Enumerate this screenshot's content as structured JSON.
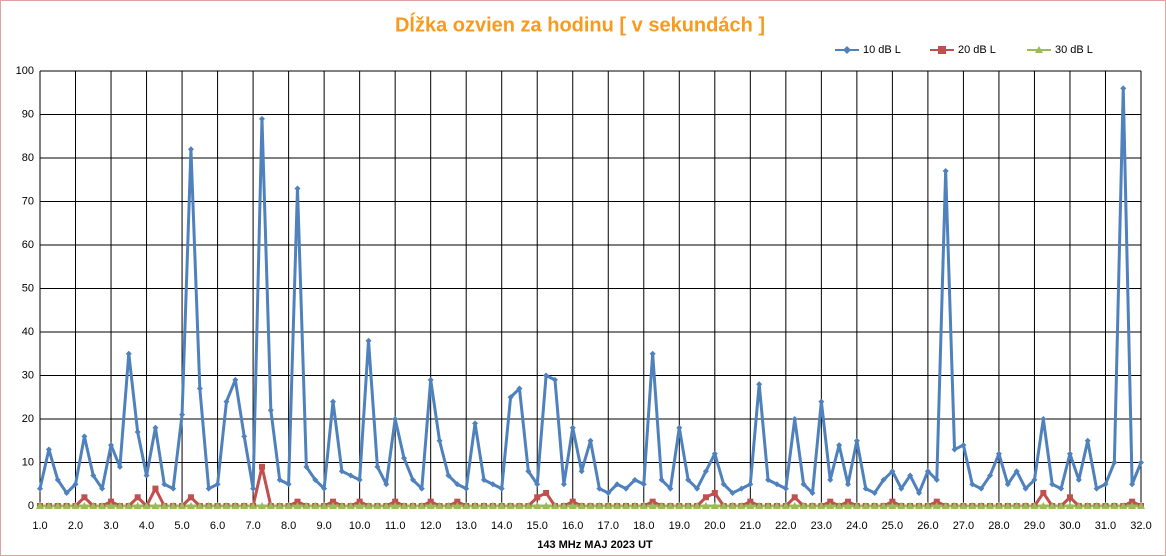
{
  "chart_data": {
    "type": "line",
    "title": "Dĺžka ozvien za hodinu [ v sekundách ]",
    "x_label": "143 MHz MAJ  2023  UT",
    "x": [
      1,
      1.25,
      1.5,
      1.75,
      2,
      2.25,
      2.5,
      2.75,
      3,
      3.25,
      3.5,
      3.75,
      4,
      4.25,
      4.5,
      4.75,
      5,
      5.25,
      5.5,
      5.75,
      6,
      6.25,
      6.5,
      6.75,
      7,
      7.25,
      7.5,
      7.75,
      8,
      8.25,
      8.5,
      8.75,
      9,
      9.25,
      9.5,
      9.75,
      10,
      10.25,
      10.5,
      10.75,
      11,
      11.25,
      11.5,
      11.75,
      12,
      12.25,
      12.5,
      12.75,
      13,
      13.25,
      13.5,
      13.75,
      14,
      14.25,
      14.5,
      14.75,
      15,
      15.25,
      15.5,
      15.75,
      16,
      16.25,
      16.5,
      16.75,
      17,
      17.25,
      17.5,
      17.75,
      18,
      18.25,
      18.5,
      18.75,
      19,
      19.25,
      19.5,
      19.75,
      20,
      20.25,
      20.5,
      20.75,
      21,
      21.25,
      21.5,
      21.75,
      22,
      22.25,
      22.5,
      22.75,
      23,
      23.25,
      23.5,
      23.75,
      24,
      24.25,
      24.5,
      24.75,
      25,
      25.25,
      25.5,
      25.75,
      26,
      26.25,
      26.5,
      26.75,
      27,
      27.25,
      27.5,
      27.75,
      28,
      28.25,
      28.5,
      28.75,
      29,
      29.25,
      29.5,
      29.75,
      30,
      30.25,
      30.5,
      30.75,
      31,
      31.25,
      31.5,
      31.75,
      32
    ],
    "series": [
      {
        "name": "10 dB L",
        "color": "#4f81bd",
        "marker": "diamond",
        "values": [
          4,
          13,
          6,
          3,
          5,
          16,
          7,
          4,
          14,
          9,
          35,
          17,
          7,
          18,
          5,
          4,
          21,
          82,
          27,
          4,
          5,
          24,
          29,
          16,
          4,
          89,
          22,
          6,
          5,
          73,
          9,
          6,
          4,
          24,
          8,
          7,
          6,
          38,
          9,
          5,
          20,
          11,
          6,
          4,
          29,
          15,
          7,
          5,
          4,
          19,
          6,
          5,
          4,
          25,
          27,
          8,
          5,
          30,
          29,
          5,
          18,
          8,
          15,
          4,
          3,
          5,
          4,
          6,
          5,
          35,
          6,
          4,
          18,
          6,
          4,
          8,
          12,
          5,
          3,
          4,
          5,
          28,
          6,
          5,
          4,
          20,
          5,
          3,
          24,
          6,
          14,
          5,
          15,
          4,
          3,
          6,
          8,
          4,
          7,
          3,
          8,
          6,
          77,
          13,
          14,
          5,
          4,
          7,
          12,
          5,
          8,
          4,
          6,
          20,
          5,
          4,
          12,
          6,
          15,
          4,
          5,
          10,
          96,
          5,
          10
        ]
      },
      {
        "name": "20 dB L",
        "color": "#c0504d",
        "marker": "square",
        "values": [
          0,
          0,
          0,
          0,
          0,
          2,
          0,
          0,
          1,
          0,
          0,
          2,
          0,
          4,
          0,
          0,
          0,
          2,
          0,
          0,
          0,
          0,
          0,
          0,
          0,
          9,
          0,
          0,
          0,
          1,
          0,
          0,
          0,
          1,
          0,
          0,
          1,
          0,
          0,
          0,
          1,
          0,
          0,
          0,
          1,
          0,
          0,
          1,
          0,
          0,
          0,
          0,
          0,
          0,
          0,
          0,
          2,
          3,
          0,
          0,
          1,
          0,
          0,
          0,
          0,
          0,
          0,
          0,
          0,
          1,
          0,
          0,
          0,
          0,
          0,
          2,
          3,
          0,
          0,
          0,
          1,
          0,
          0,
          0,
          0,
          2,
          0,
          0,
          0,
          1,
          0,
          1,
          0,
          0,
          0,
          0,
          1,
          0,
          0,
          0,
          0,
          1,
          0,
          0,
          0,
          0,
          0,
          0,
          0,
          0,
          0,
          0,
          0,
          3,
          0,
          0,
          2,
          0,
          0,
          0,
          0,
          0,
          0,
          1,
          0
        ]
      },
      {
        "name": "30 dB L",
        "color": "#9bbb59",
        "marker": "triangle",
        "values": [
          0,
          0,
          0,
          0,
          0,
          0,
          0,
          0,
          0,
          0,
          0,
          0,
          0,
          0,
          0,
          0,
          0,
          0,
          0,
          0,
          0,
          0,
          0,
          0,
          0,
          0,
          0,
          0,
          0,
          0,
          0,
          0,
          0,
          0,
          0,
          0,
          0,
          0,
          0,
          0,
          0,
          0,
          0,
          0,
          0,
          0,
          0,
          0,
          0,
          0,
          0,
          0,
          0,
          0,
          0,
          0,
          0,
          0,
          0,
          0,
          0,
          0,
          0,
          0,
          0,
          0,
          0,
          0,
          0,
          0,
          0,
          0,
          0,
          0,
          0,
          0,
          0,
          0,
          0,
          0,
          0,
          0,
          0,
          0,
          0,
          0,
          0,
          0,
          0,
          0,
          0,
          0,
          0,
          0,
          0,
          0,
          0,
          0,
          0,
          0,
          0,
          0,
          0,
          0,
          0,
          0,
          0,
          0,
          0,
          0,
          0,
          0,
          0,
          0,
          0,
          0,
          0,
          0,
          0,
          0,
          0,
          0,
          0,
          0,
          0
        ]
      }
    ],
    "xlim": [
      1,
      32
    ],
    "xticks": [
      {
        "value": 1,
        "label": "1.0"
      },
      {
        "value": 2,
        "label": "2.0"
      },
      {
        "value": 3,
        "label": "3.0"
      },
      {
        "value": 4,
        "label": "4.0"
      },
      {
        "value": 5,
        "label": "5.0"
      },
      {
        "value": 6,
        "label": "6.0"
      },
      {
        "value": 7,
        "label": "7.0"
      },
      {
        "value": 8,
        "label": "8.0"
      },
      {
        "value": 9,
        "label": "9.0"
      },
      {
        "value": 10,
        "label": "10.0"
      },
      {
        "value": 11,
        "label": "11.0"
      },
      {
        "value": 12,
        "label": "12.0"
      },
      {
        "value": 13,
        "label": "13.0"
      },
      {
        "value": 14,
        "label": "14.0"
      },
      {
        "value": 15,
        "label": "15.0"
      },
      {
        "value": 16,
        "label": "16.0"
      },
      {
        "value": 17,
        "label": "17.0"
      },
      {
        "value": 18,
        "label": "18.0"
      },
      {
        "value": 19,
        "label": "19.0"
      },
      {
        "value": 20,
        "label": "20.0"
      },
      {
        "value": 21,
        "label": "21.0"
      },
      {
        "value": 22,
        "label": "22.0"
      },
      {
        "value": 23,
        "label": "23.0"
      },
      {
        "value": 24,
        "label": "24.0"
      },
      {
        "value": 25,
        "label": "25.0"
      },
      {
        "value": 26,
        "label": "26.0"
      },
      {
        "value": 27,
        "label": "27.0"
      },
      {
        "value": 28,
        "label": "28.0"
      },
      {
        "value": 29,
        "label": "29.0"
      },
      {
        "value": 30,
        "label": "30.0"
      },
      {
        "value": 31,
        "label": "31.0"
      },
      {
        "value": 32,
        "label": "32.0"
      }
    ],
    "ylim": [
      0,
      100
    ],
    "yticks": [
      0,
      10,
      20,
      30,
      40,
      50,
      60,
      70,
      80,
      90,
      100
    ],
    "grid": true,
    "legend": "top-right"
  }
}
